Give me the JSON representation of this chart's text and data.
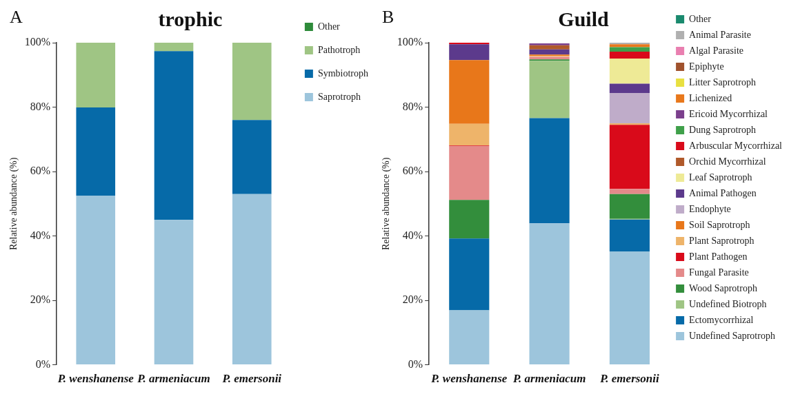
{
  "chart_data": [
    {
      "type": "bar",
      "title": "trophic",
      "annotations": [
        "A"
      ],
      "ylabel": "Relative abundance (%)",
      "categories": [
        "P. wenshanense",
        "P. armeniacum",
        "P. emersonii"
      ],
      "stacked": true,
      "ylim": [
        0,
        100
      ],
      "yticks": [
        {
          "value": 0,
          "label": "0%"
        },
        {
          "value": 20,
          "label": "20%"
        },
        {
          "value": 40,
          "label": "40%"
        },
        {
          "value": 60,
          "label": "60%"
        },
        {
          "value": 80,
          "label": "80%"
        },
        {
          "value": 100,
          "label": "100%"
        }
      ],
      "grid": false,
      "legend": "right",
      "series": [
        {
          "name": "Saprotroph",
          "color": "#9dc5dc",
          "values": [
            52.5,
            45,
            53
          ]
        },
        {
          "name": "Symbiotroph",
          "color": "#066aa8",
          "values": [
            27.4,
            52.4,
            23
          ]
        },
        {
          "name": "Pathotroph",
          "color": "#9fc584",
          "values": [
            20.1,
            2.6,
            24
          ]
        },
        {
          "name": "Other",
          "color": "#2e8b3a",
          "values": [
            0,
            0,
            0
          ]
        }
      ]
    },
    {
      "type": "bar",
      "title": "Guild",
      "annotations": [
        "B"
      ],
      "ylabel": "Relative abundance (%)",
      "categories": [
        "P. wenshanense",
        "P. armeniacum",
        "P. emersonii"
      ],
      "stacked": true,
      "ylim": [
        0,
        100
      ],
      "yticks": [
        {
          "value": 0,
          "label": "0%"
        },
        {
          "value": 20,
          "label": "20%"
        },
        {
          "value": 40,
          "label": "40%"
        },
        {
          "value": 60,
          "label": "60%"
        },
        {
          "value": 80,
          "label": "80%"
        },
        {
          "value": 100,
          "label": "100%"
        }
      ],
      "grid": false,
      "legend": "right",
      "series": [
        {
          "name": "Undefined Saprotroph",
          "color": "#9dc5dc",
          "values": [
            16.9,
            43.9,
            35.2
          ]
        },
        {
          "name": "Ectomycorrhizal",
          "color": "#066aa8",
          "values": [
            22.3,
            32.7,
            9.9
          ]
        },
        {
          "name": "Undefined Biotroph",
          "color": "#9fc584",
          "values": [
            0,
            17.8,
            0.2
          ]
        },
        {
          "name": "Wood Saprotroph",
          "color": "#338e3c",
          "values": [
            12,
            0.4,
            7.7
          ]
        },
        {
          "name": "Fungal Parasite",
          "color": "#e48a8a",
          "values": [
            16.7,
            0.8,
            1.6
          ]
        },
        {
          "name": "Plant Pathogen",
          "color": "#d90a1a",
          "values": [
            0.2,
            0,
            19.9
          ]
        },
        {
          "name": "Plant Saprotroph",
          "color": "#eeb46a",
          "values": [
            6.7,
            0.3,
            0.5
          ]
        },
        {
          "name": "Soil Saprotroph",
          "color": "#e8771a",
          "values": [
            19.8,
            0.4,
            0
          ]
        },
        {
          "name": "Endophyte",
          "color": "#bfacc9",
          "values": [
            0,
            0,
            9.4
          ]
        },
        {
          "name": "Animal Pathogen",
          "color": "#5c3a8c",
          "values": [
            4.9,
            1.6,
            2.9
          ]
        },
        {
          "name": "Leaf Saprotroph",
          "color": "#eeea96",
          "values": [
            0,
            0,
            7.8
          ]
        },
        {
          "name": "Orchid Mycorrhizal",
          "color": "#b0592a",
          "values": [
            0,
            1.3,
            0
          ]
        },
        {
          "name": "Arbuscular Mycorrhizal",
          "color": "#d90a1a",
          "values": [
            0.5,
            0,
            2.1
          ]
        },
        {
          "name": "Dung Saprotroph",
          "color": "#3fa04a",
          "values": [
            0,
            0,
            1.4
          ]
        },
        {
          "name": "Ericoid Mycorrhizal",
          "color": "#7b3f8c",
          "values": [
            0,
            0.6,
            0
          ]
        },
        {
          "name": "Lichenized",
          "color": "#e8781c",
          "values": [
            0,
            0,
            0.9
          ]
        },
        {
          "name": "Litter Saprotroph",
          "color": "#e8e040",
          "values": [
            0,
            0,
            0
          ]
        },
        {
          "name": "Epiphyte",
          "color": "#a0522d",
          "values": [
            0,
            0,
            0
          ]
        },
        {
          "name": "Algal Parasite",
          "color": "#e97fb0",
          "values": [
            0,
            0,
            0
          ]
        },
        {
          "name": "Animal Parasite",
          "color": "#b0b0b0",
          "values": [
            0,
            0,
            0.5
          ]
        },
        {
          "name": "Other",
          "color": "#1a8a6e",
          "values": [
            0,
            0,
            0
          ]
        }
      ]
    }
  ]
}
